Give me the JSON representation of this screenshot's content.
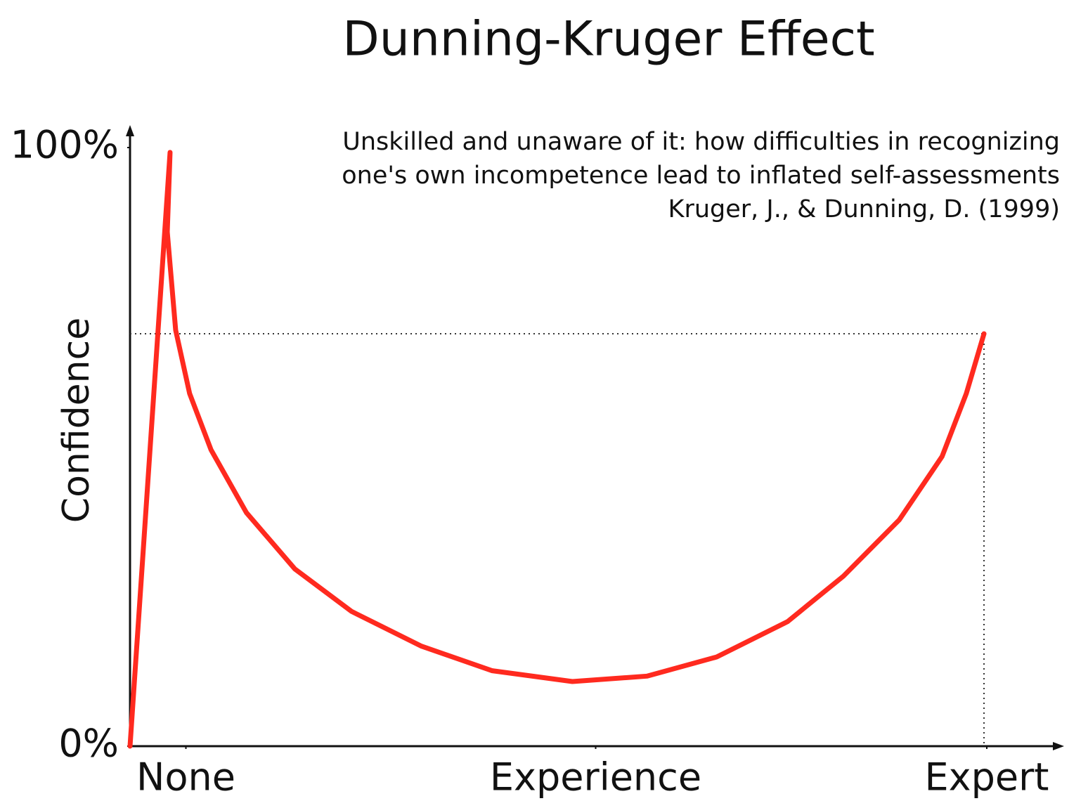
{
  "chart_data": {
    "type": "line",
    "title": "Dunning-Kruger Effect",
    "subtitle": [
      "Unskilled and unaware of it: how difficulties in recognizing",
      "one's own incompetence lead to inflated self-assessments",
      "Kruger, J., & Dunning, D. (1999)"
    ],
    "y_label": "Confidence",
    "x": [
      0,
      4.3,
      4.0,
      4.9,
      6.4,
      8.7,
      12.5,
      17.7,
      23.8,
      31.3,
      38.9,
      47.5,
      55.5,
      63.0,
      70.6,
      76.6,
      82.6,
      87.2,
      89.8,
      91.7
    ],
    "values": [
      0,
      99.2,
      85.9,
      69.5,
      58.9,
      49.5,
      39.0,
      29.6,
      22.5,
      16.7,
      12.6,
      10.8,
      11.7,
      14.9,
      20.8,
      28.4,
      37.8,
      48.4,
      58.9,
      68.9
    ],
    "color": "#ff2a1f",
    "xlim": [
      0,
      100
    ],
    "xticks": [
      {
        "value": 6,
        "label": "None"
      },
      {
        "value": 50,
        "label": "Experience"
      },
      {
        "value": 92,
        "label": "Expert"
      }
    ],
    "ylim": [
      0,
      100
    ],
    "yticks": [
      {
        "value": 0,
        "label": "0%"
      },
      {
        "value": 100,
        "label": "100%"
      }
    ],
    "grid": false
  }
}
